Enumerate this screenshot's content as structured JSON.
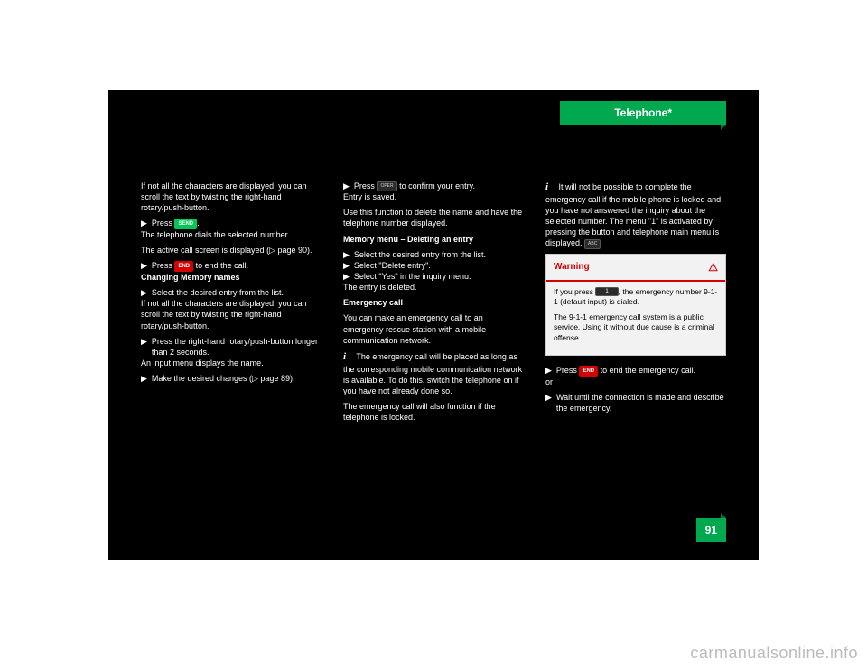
{
  "header": {
    "title": "Telephone*"
  },
  "page_number": "91",
  "watermark": "carmanualsonline.info",
  "col1": {
    "p1": "If not all the characters are displayed, you can scroll the text by",
    "p1b": "twisting the right-hand rotary/push-button.",
    "b1_pre": "Press ",
    "b1_post": ".",
    "p2a": "The telephone dials the selected number.",
    "p2b": "The active call screen is displayed (",
    "p2c": "page 90).",
    "b2_pre": "Press ",
    "b2_post": " to end the call.",
    "h1": "Changing Memory names",
    "b3": "Select the desired entry from the list.",
    "p3a": "If not all the characters are displayed, you can scroll the text by",
    "p3b": "twisting the right-hand rotary/push-button.",
    "b4": "Press the right-hand rotary/push-button longer than 2 seconds.",
    "p4a": "An input menu displays the name.",
    "b5a": "Make the desired changes (",
    "b5b": "page 89)."
  },
  "col2": {
    "b1_pre": "Press ",
    "b1_post": " to confirm your entry.",
    "p1a": "Entry is saved.",
    "p1b": "Use this function to delete the name and have the telephone number displayed.",
    "h1": "Memory menu – Deleting an entry",
    "b2": "Select the desired entry from the list.",
    "b3": "Select \"Delete entry\".",
    "b4": "Select \"Yes\" in the inquiry menu.",
    "p2": "The entry is deleted.",
    "h2": "Emergency call",
    "p3": "You can make an emergency call to an emergency rescue station with a mobile communication network.",
    "i_note": "The emergency call will be placed as long as the corresponding mobile communication network is available. To do this, switch the telephone on if you have not already done so.",
    "p4": "The emergency call will also function if the telephone is locked."
  },
  "col3": {
    "i_note": "It will not be possible to complete the emergency call if the mobile phone is locked and you have not answered the inquiry about the selected number. The menu \"1\" is activated by pressing the button and telephone main menu is displayed.",
    "warning": {
      "title": "Warning",
      "body1_pre": "If you press ",
      "body1_post": ", the emergency number 9-1-1 (default input) is dialed.",
      "body2": "The 9-1-1 emergency call system is a public service. Using it without due cause is a criminal offense."
    },
    "b1_pre": "Press ",
    "b1_post": " to end the emergency call.",
    "b2": "Wait until the connection is made and describe the emergency."
  },
  "keys": {
    "send": "SEND",
    "end": "END",
    "oper": "OPER",
    "abc": "ABC",
    "one": "1"
  }
}
